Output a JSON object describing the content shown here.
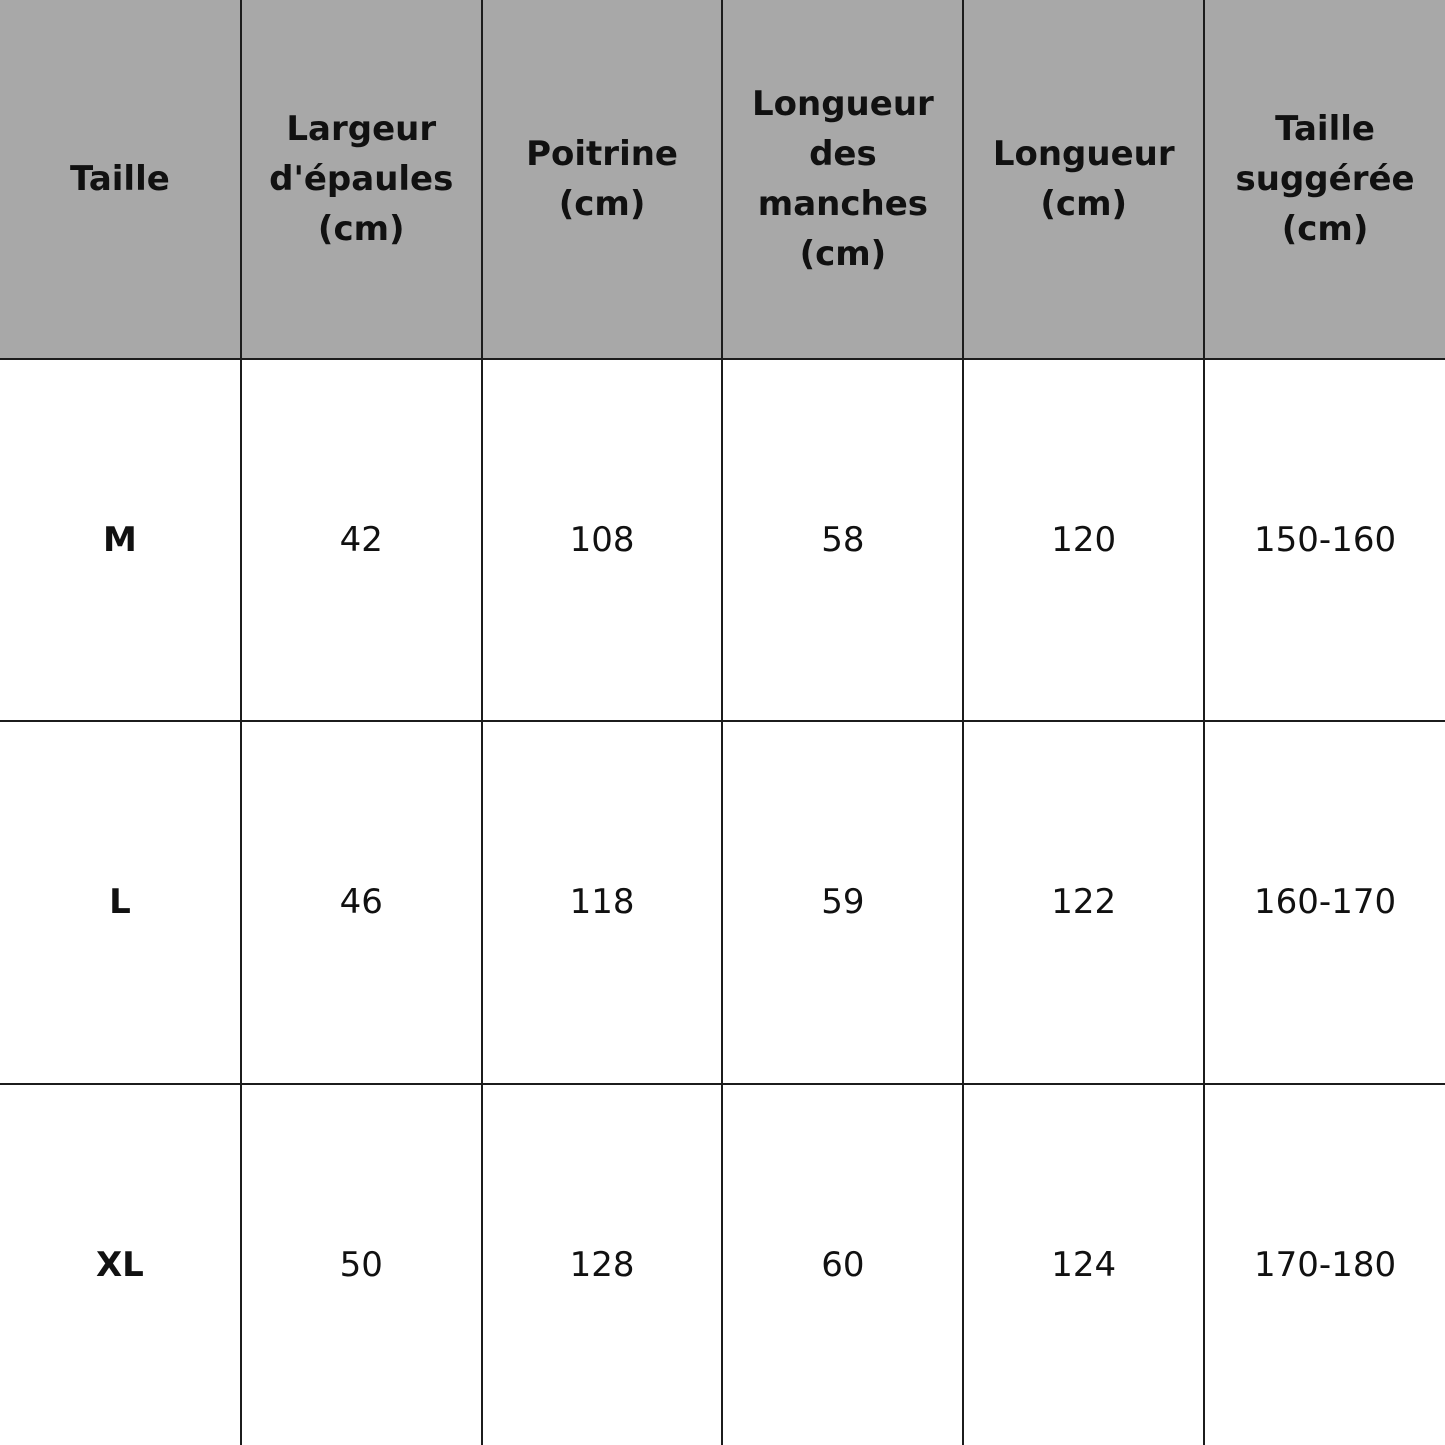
{
  "table": {
    "headers": [
      "Taille",
      "Largeur d'épaules (cm)",
      "Poitrine (cm)",
      "Longueur des manches (cm)",
      "Longueur (cm)",
      "Taille suggérée (cm)"
    ],
    "rows": [
      [
        "M",
        "42",
        "108",
        "58",
        "120",
        "150-160"
      ],
      [
        "L",
        "46",
        "118",
        "59",
        "122",
        "160-170"
      ],
      [
        "XL",
        "50",
        "128",
        "60",
        "124",
        "170-180"
      ]
    ]
  },
  "colors": {
    "header_bg": "#a8a8a8",
    "border": "#1c1c1c"
  }
}
